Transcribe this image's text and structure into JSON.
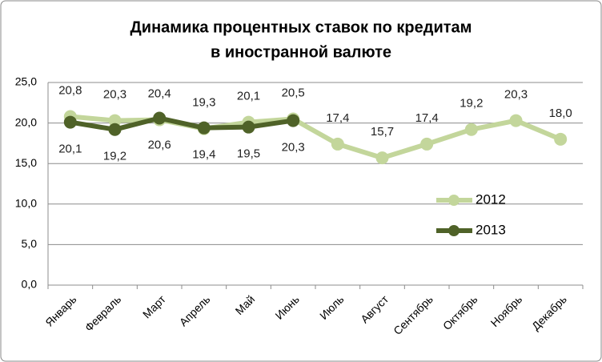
{
  "chart_data": {
    "type": "line",
    "title": [
      "Динамика процентных ставок по кредитам",
      "в иностранной валюте"
    ],
    "categories": [
      "Январь",
      "Февраль",
      "Март",
      "Апрель",
      "Май",
      "Июнь",
      "Июль",
      "Август",
      "Сентябрь",
      "Октябрь",
      "Ноябрь",
      "Декабрь"
    ],
    "series": [
      {
        "name": "2012",
        "color": "#c3d69b",
        "values": [
          20.8,
          20.3,
          20.4,
          19.3,
          20.1,
          20.5,
          17.4,
          15.7,
          17.4,
          19.2,
          20.3,
          18.0
        ],
        "value_labels": [
          "20,8",
          "20,3",
          "20,4",
          "19,3",
          "20,1",
          "20,5",
          "17,4",
          "15,7",
          "17,4",
          "19,2",
          "20,3",
          "18,0"
        ]
      },
      {
        "name": "2013",
        "color": "#4f6228",
        "values": [
          20.1,
          19.2,
          20.6,
          19.4,
          19.5,
          20.3,
          null,
          null,
          null,
          null,
          null,
          null
        ],
        "value_labels": [
          "20,1",
          "19,2",
          "20,6",
          "19,4",
          "19,5",
          "20,3",
          null,
          null,
          null,
          null,
          null,
          null
        ]
      }
    ],
    "ylim": [
      0,
      25
    ],
    "yticks": [
      {
        "value": 0,
        "label": "0,0"
      },
      {
        "value": 5,
        "label": "5,0"
      },
      {
        "value": 10,
        "label": "10,0"
      },
      {
        "value": 15,
        "label": "15,0"
      },
      {
        "value": 20,
        "label": "20,0"
      },
      {
        "value": 25,
        "label": "25,0"
      }
    ],
    "grid": true
  }
}
